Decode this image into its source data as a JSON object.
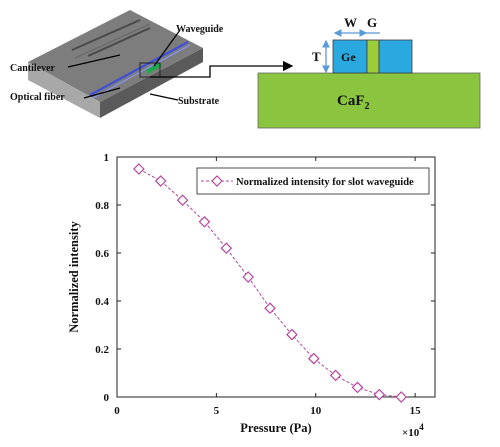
{
  "device_figure": {
    "labels": {
      "waveguide": "Waveguide",
      "cantilever": "Cantilever",
      "optical_fiber": "Optical fiber",
      "substrate": "Substrate"
    }
  },
  "cross_section": {
    "labels": {
      "w": "W",
      "g": "G",
      "t": "T",
      "ge": "Ge",
      "substrate_main": "CaF",
      "substrate_sub": "2"
    },
    "colors": {
      "ge_block": "#29a9e0",
      "slot": "#9ccc3a",
      "substrate": "#8bc53f",
      "arrows": "#5b9bd5"
    }
  },
  "chart_data": {
    "type": "line",
    "xlabel": "Pressure (Pa)",
    "ylabel": "Normalized intensity",
    "x_multiplier_label": "×10",
    "x_multiplier_exp": "4",
    "xlim": [
      0,
      16
    ],
    "ylim": [
      0,
      1
    ],
    "xticks": [
      0,
      5,
      10,
      15
    ],
    "xtick_labels": [
      "0",
      "5",
      "10",
      "15"
    ],
    "yticks": [
      0,
      0.2,
      0.4,
      0.6,
      0.8,
      1
    ],
    "ytick_labels": [
      "0",
      "0.2",
      "0.4",
      "0.6",
      "0.8",
      "1"
    ],
    "legend_position": "top-right",
    "grid": false,
    "series": [
      {
        "name": "Normalized intensity for slot waveguide",
        "color": "#b5479b",
        "marker": "diamond",
        "line_style": "dashed",
        "x": [
          1.1,
          2.2,
          3.3,
          4.4,
          5.5,
          6.6,
          7.7,
          8.8,
          9.9,
          11.0,
          12.1,
          13.2,
          14.3
        ],
        "y": [
          0.95,
          0.9,
          0.82,
          0.73,
          0.62,
          0.5,
          0.37,
          0.26,
          0.16,
          0.09,
          0.04,
          0.01,
          0.0
        ]
      }
    ]
  }
}
